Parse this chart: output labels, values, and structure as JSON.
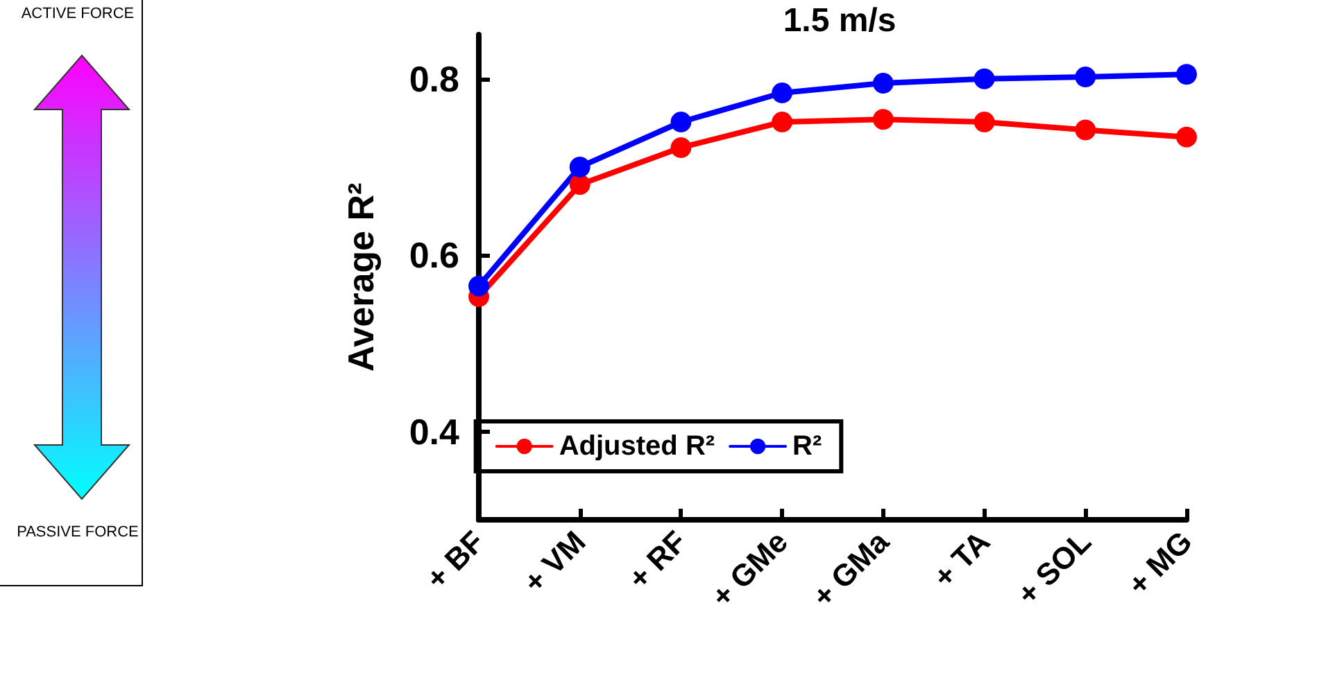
{
  "chart_data": {
    "type": "line",
    "title": "1.5 m/s",
    "ylabel": "Average R²",
    "categories": [
      "+ BF",
      "+ VM",
      "+ RF",
      "+ GMe",
      "+ GMa",
      "+ TA",
      "+ SOL",
      "+ MG"
    ],
    "series": [
      {
        "name": "Adjusted R²",
        "color": "#ff0000",
        "values": [
          0.553,
          0.68,
          0.722,
          0.751,
          0.754,
          0.751,
          0.742,
          0.734
        ]
      },
      {
        "name": "R²",
        "color": "#0000ff",
        "values": [
          0.565,
          0.7,
          0.751,
          0.784,
          0.795,
          0.8,
          0.802,
          0.805
        ]
      }
    ],
    "ylim": [
      0.3,
      0.85
    ],
    "yticks": [
      0.4,
      0.6,
      0.8
    ],
    "grid": false,
    "legend": "bottom",
    "marker": "circle",
    "line_style": "solid",
    "annotations": [
      "ACTIVE FORCE",
      "PASSIVE FORCE"
    ]
  }
}
